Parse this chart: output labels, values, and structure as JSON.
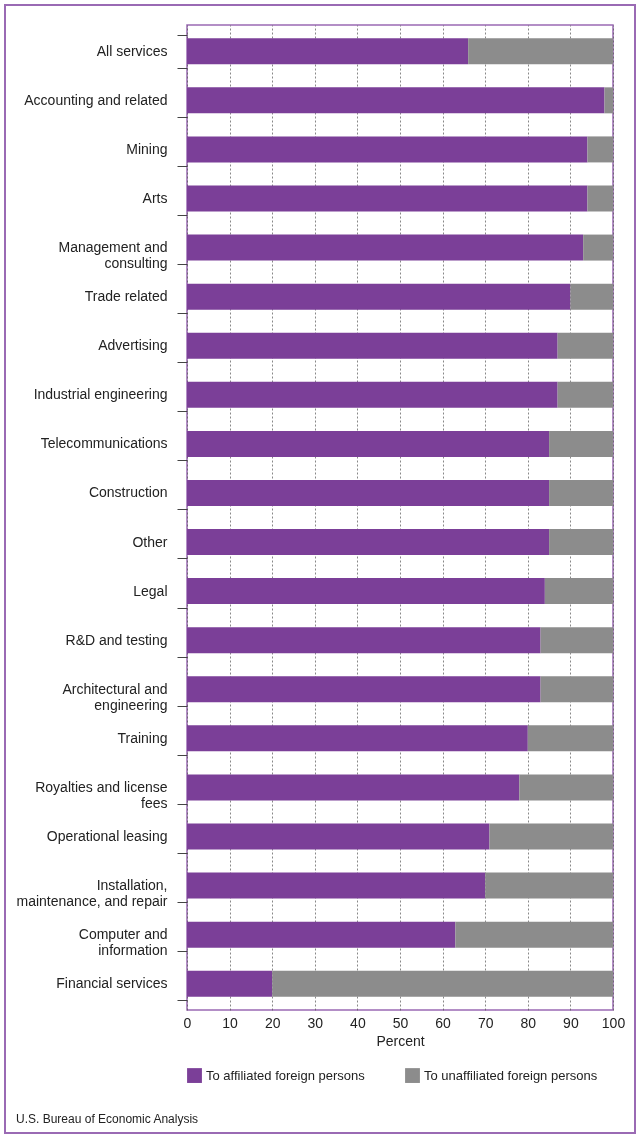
{
  "chart_data": {
    "type": "bar",
    "orientation": "horizontal",
    "stacked": true,
    "categories": [
      "All services",
      "Accounting and related",
      "Mining",
      "Arts",
      "Management and consulting",
      "Trade related",
      "Advertising",
      "Industrial engineering",
      "Telecommunications",
      "Construction",
      "Other",
      "Legal",
      "R&D and testing",
      "Architectural and engineering",
      "Training",
      "Royalties and license fees",
      "Operational leasing",
      "Installation, maintenance, and repair",
      "Computer and information",
      "Financial services"
    ],
    "series": [
      {
        "name": "To affiliated foreign persons",
        "color": "#7b3f98",
        "values": [
          66,
          98,
          94,
          94,
          93,
          90,
          87,
          87,
          85,
          85,
          85,
          84,
          83,
          83,
          80,
          78,
          71,
          70,
          63,
          20
        ]
      },
      {
        "name": "To unaffiliated foreign persons",
        "color": "#8c8c8c",
        "values": [
          34,
          2,
          6,
          6,
          7,
          10,
          13,
          13,
          15,
          15,
          15,
          16,
          17,
          17,
          20,
          22,
          29,
          30,
          37,
          80
        ]
      }
    ],
    "xlabel": "Percent",
    "xlim": [
      0,
      100
    ],
    "xticks": [
      0,
      10,
      20,
      30,
      40,
      50,
      60,
      70,
      80,
      90,
      100
    ],
    "grid": "x",
    "legend": "bottom",
    "annotations": [
      "U.S. Bureau of Economic Analysis"
    ]
  }
}
